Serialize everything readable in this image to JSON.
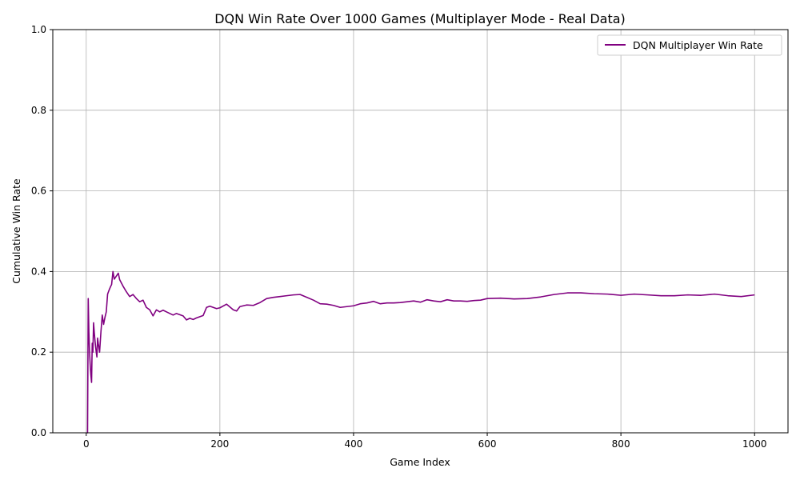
{
  "chart_data": {
    "type": "line",
    "title": "DQN Win Rate Over 1000 Games (Multiplayer Mode - Real Data)",
    "xlabel": "Game Index",
    "ylabel": "Cumulative Win Rate",
    "xlim": [
      -50,
      1050
    ],
    "ylim": [
      0.0,
      1.0
    ],
    "xticks": [
      0,
      200,
      400,
      600,
      800,
      1000
    ],
    "yticks": [
      0.0,
      0.2,
      0.4,
      0.6,
      0.8,
      1.0
    ],
    "xtick_labels": [
      "0",
      "200",
      "400",
      "600",
      "800",
      "1000"
    ],
    "ytick_labels": [
      "0.0",
      "0.2",
      "0.4",
      "0.6",
      "0.8",
      "1.0"
    ],
    "grid": true,
    "legend_position": "top-right",
    "series": [
      {
        "name": "DQN Multiplayer Win Rate",
        "color": "#800080",
        "x": [
          1,
          2,
          3,
          4,
          5,
          6,
          7,
          8,
          9,
          10,
          11,
          12,
          13,
          14,
          15,
          16,
          17,
          18,
          19,
          20,
          22,
          24,
          26,
          28,
          30,
          32,
          34,
          36,
          38,
          40,
          42,
          44,
          46,
          48,
          50,
          55,
          60,
          65,
          70,
          75,
          80,
          85,
          90,
          95,
          100,
          105,
          110,
          115,
          120,
          125,
          130,
          135,
          140,
          145,
          150,
          155,
          160,
          165,
          170,
          175,
          180,
          185,
          190,
          195,
          200,
          210,
          220,
          225,
          230,
          240,
          250,
          260,
          270,
          280,
          290,
          300,
          310,
          320,
          330,
          340,
          350,
          360,
          370,
          380,
          390,
          400,
          410,
          420,
          430,
          440,
          450,
          460,
          470,
          480,
          490,
          500,
          510,
          520,
          530,
          540,
          550,
          560,
          570,
          580,
          590,
          600,
          620,
          640,
          660,
          680,
          700,
          720,
          740,
          760,
          780,
          800,
          820,
          840,
          860,
          880,
          900,
          920,
          940,
          960,
          980,
          1000
        ],
        "values": [
          0.0,
          0.0,
          0.333,
          0.25,
          0.2,
          0.167,
          0.143,
          0.125,
          0.222,
          0.2,
          0.273,
          0.25,
          0.231,
          0.214,
          0.2,
          0.188,
          0.235,
          0.222,
          0.211,
          0.2,
          0.25,
          0.292,
          0.269,
          0.286,
          0.3,
          0.344,
          0.353,
          0.361,
          0.368,
          0.4,
          0.381,
          0.386,
          0.391,
          0.396,
          0.38,
          0.364,
          0.35,
          0.338,
          0.343,
          0.333,
          0.325,
          0.329,
          0.311,
          0.305,
          0.29,
          0.305,
          0.3,
          0.304,
          0.3,
          0.296,
          0.292,
          0.296,
          0.293,
          0.29,
          0.28,
          0.284,
          0.281,
          0.285,
          0.288,
          0.291,
          0.311,
          0.314,
          0.311,
          0.308,
          0.31,
          0.319,
          0.305,
          0.302,
          0.313,
          0.317,
          0.316,
          0.323,
          0.333,
          0.336,
          0.338,
          0.34,
          0.342,
          0.343,
          0.336,
          0.329,
          0.32,
          0.319,
          0.316,
          0.311,
          0.313,
          0.315,
          0.32,
          0.322,
          0.326,
          0.32,
          0.322,
          0.322,
          0.323,
          0.325,
          0.327,
          0.324,
          0.33,
          0.327,
          0.325,
          0.33,
          0.327,
          0.327,
          0.326,
          0.328,
          0.329,
          0.333,
          0.334,
          0.332,
          0.333,
          0.337,
          0.343,
          0.347,
          0.347,
          0.345,
          0.344,
          0.341,
          0.344,
          0.342,
          0.34,
          0.34,
          0.342,
          0.341,
          0.344,
          0.34,
          0.338,
          0.342
        ]
      }
    ]
  }
}
